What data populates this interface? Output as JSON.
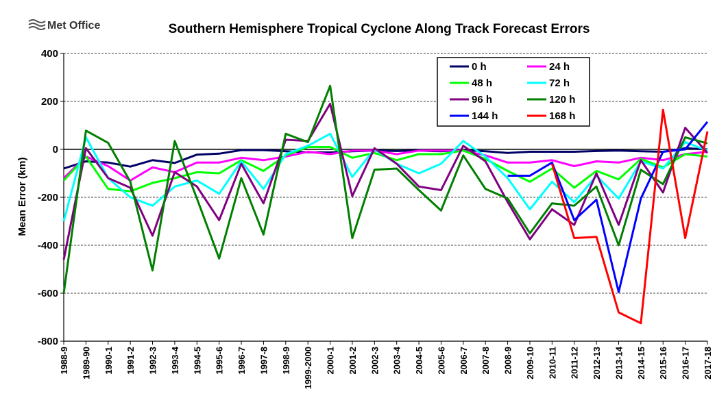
{
  "logo": {
    "text": "Met Office"
  },
  "chart_data": {
    "type": "line",
    "title": "Southern Hemisphere Tropical Cyclone Along Track Forecast Errors",
    "xlabel": "",
    "ylabel": "Mean Error (km)",
    "ylim": [
      -800,
      400
    ],
    "yticks": [
      400,
      200,
      0,
      -200,
      -400,
      -600,
      -800
    ],
    "grid": true,
    "legend_position": "top-right",
    "categories": [
      "1988-9",
      "1989-90",
      "1990-1",
      "1991-2",
      "1992-3",
      "1993-4",
      "1994-5",
      "1995-6",
      "1996-7",
      "1997-8",
      "1998-9",
      "1999-2000",
      "2000-1",
      "2001-2",
      "2002-3",
      "2003-4",
      "2004-5",
      "2005-6",
      "2006-7",
      "2007-8",
      "2008-9",
      "2009-10",
      "2010-11",
      "2011-12",
      "2012-13",
      "2013-14",
      "2014-15",
      "2015-16",
      "2016-17",
      "2017-18"
    ],
    "series": [
      {
        "name": "0 h",
        "color": "#000066",
        "values": [
          -80,
          -50,
          -55,
          -72,
          -45,
          -57,
          -22,
          -18,
          -3,
          -3,
          -8,
          -12,
          -13,
          -8,
          -5,
          -7,
          -5,
          -8,
          -3,
          -8,
          -15,
          -10,
          -10,
          -10,
          -7,
          -5,
          -8,
          -10,
          5,
          0
        ]
      },
      {
        "name": "24 h",
        "color": "#ff00ff",
        "values": [
          -120,
          -30,
          -70,
          -130,
          -75,
          -95,
          -55,
          -55,
          -35,
          -45,
          -30,
          -10,
          -20,
          -5,
          -5,
          -20,
          -5,
          -5,
          -5,
          -25,
          -55,
          -55,
          -45,
          -70,
          -50,
          -55,
          -35,
          -45,
          -20,
          -10
        ]
      },
      {
        "name": "48 h",
        "color": "#00ff00",
        "values": [
          -130,
          -30,
          -165,
          -175,
          -140,
          -120,
          -95,
          -100,
          -45,
          -90,
          -25,
          10,
          10,
          -35,
          -15,
          -45,
          -20,
          -20,
          -5,
          -40,
          -90,
          -135,
          -80,
          -160,
          -90,
          -125,
          -40,
          -75,
          -20,
          -30
        ]
      },
      {
        "name": "72 h",
        "color": "#00ffff",
        "values": [
          -300,
          50,
          -120,
          -200,
          -235,
          -155,
          -130,
          -185,
          -50,
          -165,
          -20,
          15,
          65,
          -115,
          0,
          -60,
          -100,
          -60,
          35,
          -30,
          -120,
          -250,
          -135,
          -220,
          -110,
          -205,
          -50,
          -80,
          30,
          -5
        ]
      },
      {
        "name": "96 h",
        "color": "#800080",
        "values": [
          -460,
          5,
          -120,
          -160,
          -360,
          -95,
          -155,
          -295,
          -60,
          -225,
          40,
          35,
          190,
          -195,
          5,
          -60,
          -155,
          -170,
          15,
          -50,
          -220,
          -375,
          -250,
          -315,
          -100,
          -315,
          -45,
          -180,
          90,
          -15
        ]
      },
      {
        "name": "120 h",
        "color": "#007f00",
        "values": [
          -600,
          78,
          27,
          -135,
          -505,
          35,
          -205,
          -455,
          -120,
          -355,
          65,
          30,
          265,
          -370,
          -85,
          -80,
          -170,
          -255,
          -25,
          -165,
          -205,
          -350,
          -225,
          -235,
          -155,
          -400,
          -85,
          -145,
          50,
          25
        ]
      },
      {
        "name": "144 h",
        "color": "#0000ff",
        "values": [
          null,
          null,
          null,
          null,
          null,
          null,
          null,
          null,
          null,
          null,
          null,
          null,
          null,
          null,
          null,
          null,
          null,
          null,
          null,
          null,
          -110,
          -110,
          -55,
          -295,
          -210,
          -595,
          -205,
          -10,
          0,
          115
        ]
      },
      {
        "name": "168 h",
        "color": "#ff0000",
        "values": [
          null,
          null,
          null,
          null,
          null,
          null,
          null,
          null,
          null,
          null,
          null,
          null,
          null,
          null,
          null,
          null,
          null,
          null,
          null,
          null,
          null,
          null,
          -60,
          -370,
          -365,
          -680,
          -725,
          165,
          -370,
          75
        ]
      }
    ]
  }
}
